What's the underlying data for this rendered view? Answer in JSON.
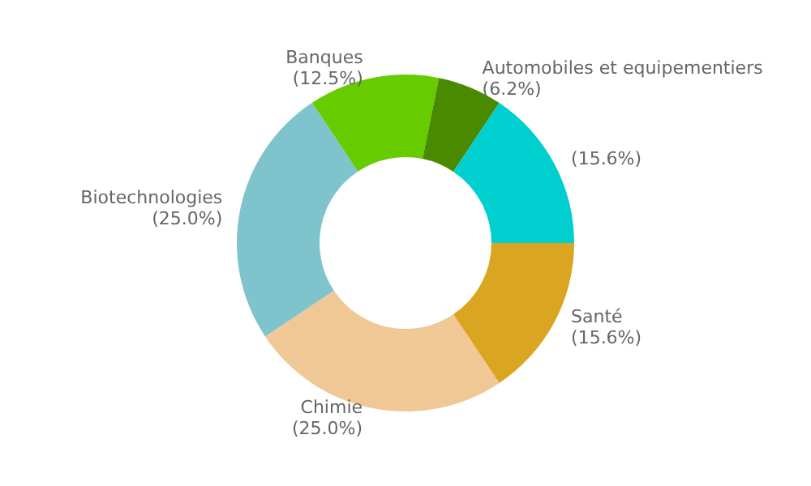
{
  "chart_data": {
    "type": "donut",
    "categories": [
      "Santé",
      "Chimie",
      "Biotechnologies",
      "Banques",
      "Automobiles et equipementiers",
      null
    ],
    "values": [
      15.6,
      25.0,
      25.0,
      12.5,
      6.2,
      15.6
    ],
    "value_labels": [
      "(15.6%)",
      "(25.0%)",
      "(25.0%)",
      "(12.5%)",
      "(6.2%)",
      "(15.6%)"
    ],
    "colors": [
      "#daa520",
      "#f0c896",
      "#7fc4cc",
      "#66cc00",
      "#4a8a00",
      "#00cfd0"
    ],
    "legend": false
  }
}
